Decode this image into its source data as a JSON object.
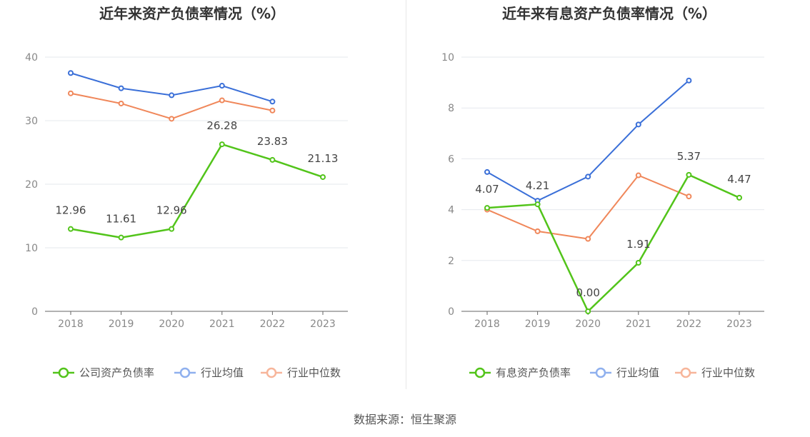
{
  "source": "数据来源：恒生聚源",
  "chart_data": [
    {
      "type": "line",
      "title": "近年来资产负债率情况（%）",
      "categories": [
        "2018",
        "2019",
        "2020",
        "2021",
        "2022",
        "2023"
      ],
      "ylim": [
        0,
        40
      ],
      "yticks": [
        0,
        10,
        20,
        30,
        40
      ],
      "grid": true,
      "legend_position": "bottom",
      "series": [
        {
          "name": "公司资产负债率",
          "color": "#52c41a",
          "values": [
            12.96,
            11.61,
            12.96,
            26.28,
            23.83,
            21.13
          ],
          "labels": [
            "12.96",
            "11.61",
            "12.96",
            "26.28",
            "23.83",
            "21.13"
          ]
        },
        {
          "name": "行业均值",
          "color": "#3a6fd8",
          "values": [
            37.5,
            35.1,
            34.0,
            35.5,
            33.0,
            null
          ]
        },
        {
          "name": "行业中位数",
          "color": "#f0875a",
          "values": [
            34.3,
            32.7,
            30.3,
            33.2,
            31.6,
            null
          ]
        }
      ]
    },
    {
      "type": "line",
      "title": "近年来有息资产负债率情况（%）",
      "categories": [
        "2018",
        "2019",
        "2020",
        "2021",
        "2022",
        "2023"
      ],
      "ylim": [
        0,
        10
      ],
      "yticks": [
        0,
        2,
        4,
        6,
        8,
        10
      ],
      "grid": true,
      "legend_position": "bottom",
      "series": [
        {
          "name": "有息资产负债率",
          "color": "#52c41a",
          "values": [
            4.07,
            4.21,
            0.0,
            1.91,
            5.37,
            4.47
          ],
          "labels": [
            "4.07",
            "4.21",
            "0.00",
            "1.91",
            "5.37",
            "4.47"
          ]
        },
        {
          "name": "行业均值",
          "color": "#3a6fd8",
          "values": [
            5.48,
            4.35,
            5.3,
            7.35,
            9.08,
            null
          ]
        },
        {
          "name": "行业中位数",
          "color": "#f0875a",
          "values": [
            4.0,
            3.15,
            2.85,
            5.35,
            4.52,
            null
          ]
        }
      ]
    }
  ]
}
